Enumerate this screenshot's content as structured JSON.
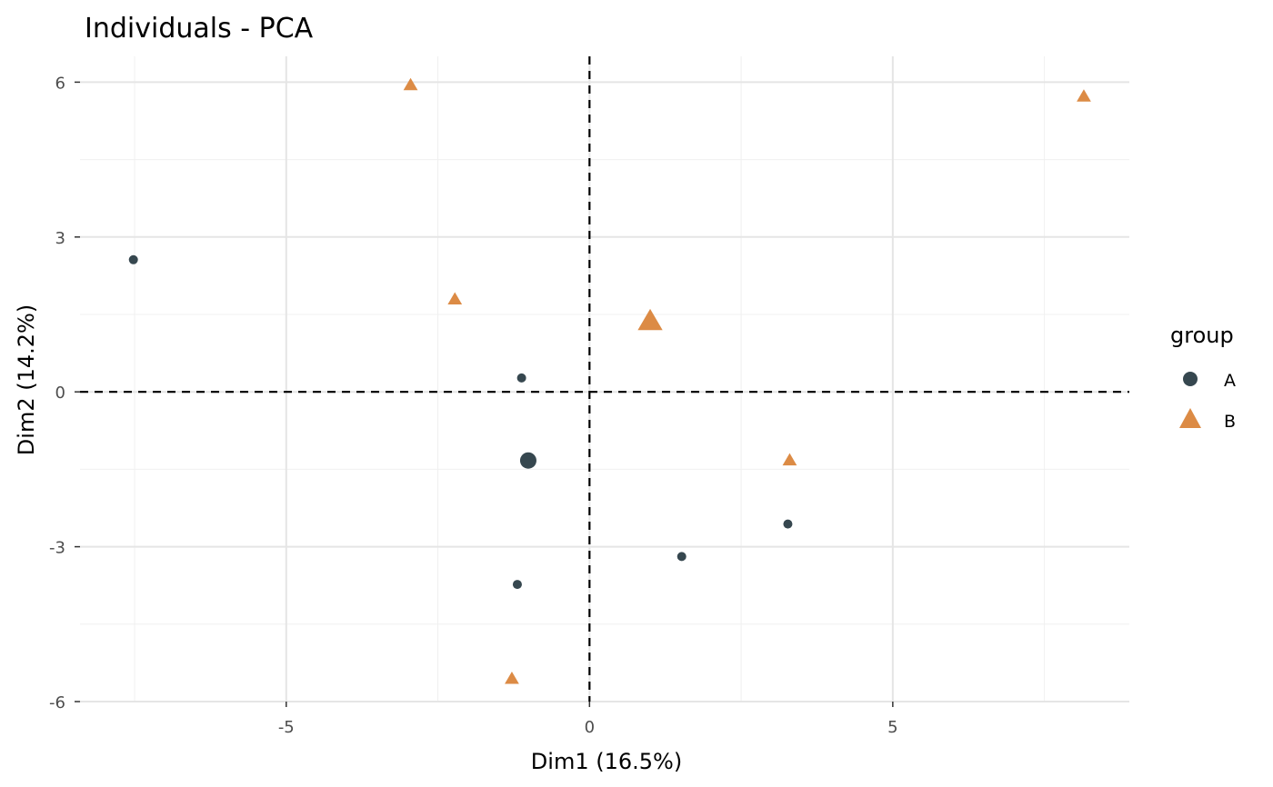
{
  "chart_data": {
    "type": "scatter",
    "title": "Individuals - PCA",
    "xlabel": "Dim1 (16.5%)",
    "ylabel": "Dim2 (14.2%)",
    "xlim": [
      -8.4,
      8.9
    ],
    "ylim": [
      -6.0,
      6.5
    ],
    "xticks": [
      -5,
      0,
      5
    ],
    "yticks": [
      -6,
      -3,
      0,
      3,
      6
    ],
    "xtick_labels": [
      "-5",
      "0",
      "5"
    ],
    "ytick_labels": [
      "-6",
      "-3",
      "0",
      "3",
      "6"
    ],
    "grid": true,
    "reference_lines": {
      "x": 0,
      "y": 0,
      "style": "dashed"
    },
    "legend": {
      "title": "group",
      "position": "right",
      "entries": [
        {
          "label": "A",
          "shape": "circle",
          "color": "#36474f"
        },
        {
          "label": "B",
          "shape": "triangle",
          "color": "#dc8b45"
        }
      ]
    },
    "series": [
      {
        "name": "A",
        "shape": "circle",
        "color": "#36474f",
        "points": [
          {
            "x": -7.52,
            "y": 2.56,
            "mean": false
          },
          {
            "x": -1.12,
            "y": 0.27,
            "mean": false
          },
          {
            "x": -1.01,
            "y": -1.33,
            "mean": true
          },
          {
            "x": -1.19,
            "y": -3.73,
            "mean": false
          },
          {
            "x": 1.52,
            "y": -3.19,
            "mean": false
          },
          {
            "x": 3.27,
            "y": -2.56,
            "mean": false
          }
        ]
      },
      {
        "name": "B",
        "shape": "triangle",
        "color": "#dc8b45",
        "points": [
          {
            "x": -2.95,
            "y": 5.95,
            "mean": false
          },
          {
            "x": -2.22,
            "y": 1.8,
            "mean": false
          },
          {
            "x": 1.0,
            "y": 1.38,
            "mean": true
          },
          {
            "x": 3.3,
            "y": -1.32,
            "mean": false
          },
          {
            "x": 8.15,
            "y": 5.73,
            "mean": false
          },
          {
            "x": -1.28,
            "y": -5.55,
            "mean": false
          }
        ]
      }
    ]
  }
}
